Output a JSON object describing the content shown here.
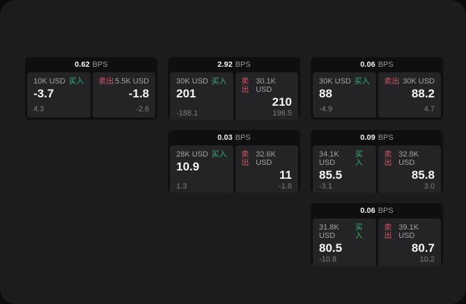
{
  "labels": {
    "bps_unit": "BPS",
    "buy": "买入",
    "sell": "卖出"
  },
  "colors": {
    "window_bg": "#1c1c1d",
    "card_bg": "#0f0f10",
    "panel_bg": "#242426",
    "buy_green": "#36b476",
    "sell_red": "#d25667",
    "price_white": "#f5f5f6",
    "muted_gray": "#a4a4a8",
    "faint_gray": "#808084"
  },
  "cards": [
    {
      "bps": "0.62",
      "buy_amount": "10K USD",
      "buy_price": "-3.7",
      "buy_change": "4.3",
      "sell_amount": "5.5K USD",
      "sell_price": "-1.8",
      "sell_change": "-2.6"
    },
    {
      "bps": "2.92",
      "buy_amount": "30K USD",
      "buy_price": "201",
      "buy_change": "-188.1",
      "sell_amount": "30.1K USD",
      "sell_price": "210",
      "sell_change": "196.5"
    },
    {
      "bps": "0.06",
      "buy_amount": "30K USD",
      "buy_price": "88",
      "buy_change": "-4.9",
      "sell_amount": "30K USD",
      "sell_price": "88.2",
      "sell_change": "4.7"
    },
    {
      "bps": "0.03",
      "buy_amount": "28K USD",
      "buy_price": "10.9",
      "buy_change": "1.3",
      "sell_amount": "32.6K USD",
      "sell_price": "11",
      "sell_change": "-1.8"
    },
    {
      "bps": "0.09",
      "buy_amount": "34.1K USD",
      "buy_price": "85.5",
      "buy_change": "-3.1",
      "sell_amount": "32.8K USD",
      "sell_price": "85.8",
      "sell_change": "3.0"
    },
    {
      "bps": "0.06",
      "buy_amount": "31.8K USD",
      "buy_price": "80.5",
      "buy_change": "-10.8",
      "sell_amount": "39.1K USD",
      "sell_price": "80.7",
      "sell_change": "10.2"
    }
  ]
}
